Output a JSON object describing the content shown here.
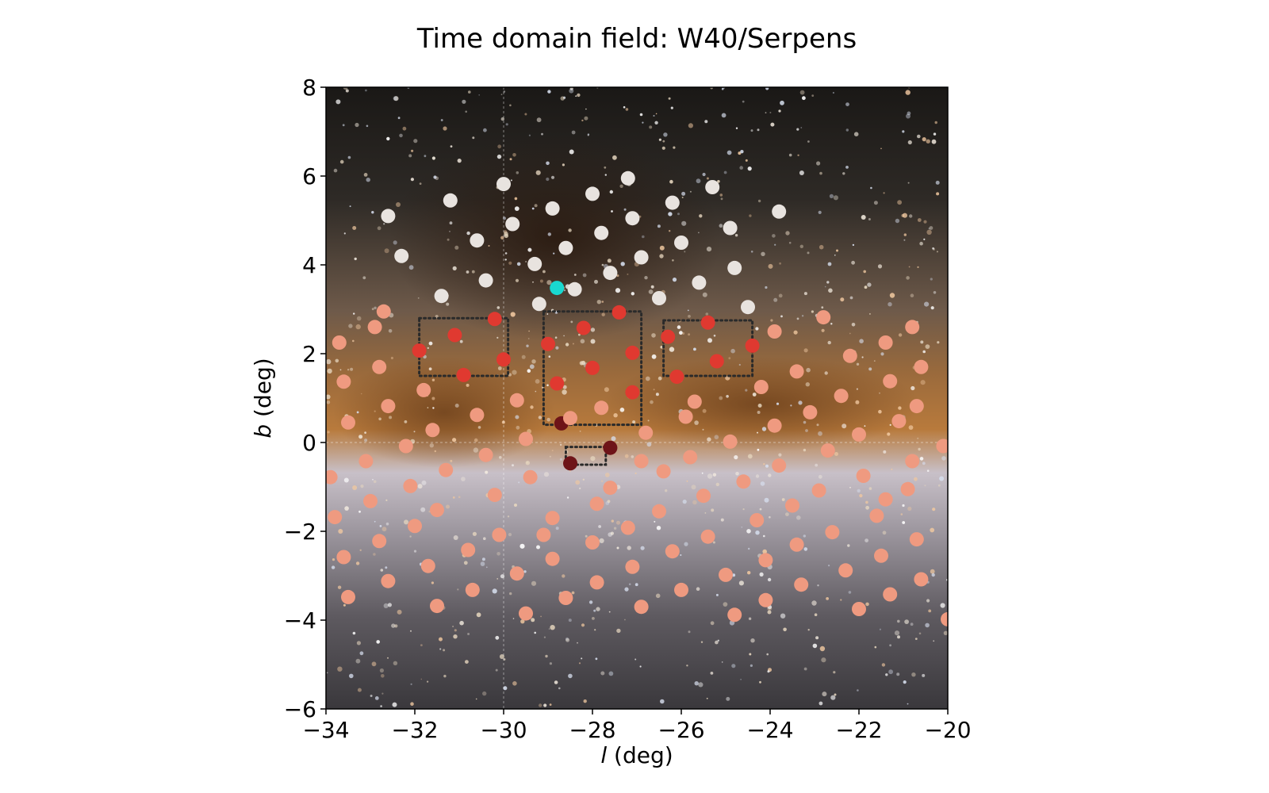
{
  "chart_data": {
    "type": "scatter",
    "title": "Time domain field: W40/Serpens",
    "xlabel_var": "l",
    "xlabel_unit": " (deg)",
    "ylabel_var": "b",
    "ylabel_unit": " (deg)",
    "xlim": [
      -34,
      -20
    ],
    "ylim": [
      -6,
      8
    ],
    "xticks": [
      -34,
      -32,
      -30,
      -28,
      -26,
      -24,
      -22,
      -20
    ],
    "yticks": [
      -6,
      -4,
      -2,
      0,
      2,
      4,
      6,
      8
    ],
    "xtick_labels": [
      "−34",
      "−32",
      "−30",
      "−28",
      "−26",
      "−24",
      "−22",
      "−20"
    ],
    "ytick_labels": [
      "−6",
      "−4",
      "−2",
      "0",
      "2",
      "4",
      "6",
      "8"
    ],
    "grid": false,
    "background": "milky-way-image",
    "reference_lines": {
      "x": -30,
      "y": 0
    },
    "regions": [
      {
        "l": [
          -31.9,
          -29.9
        ],
        "b": [
          1.5,
          2.8
        ]
      },
      {
        "l": [
          -29.1,
          -26.9
        ],
        "b": [
          0.4,
          2.95
        ]
      },
      {
        "l": [
          -26.4,
          -24.4
        ],
        "b": [
          1.5,
          2.75
        ]
      },
      {
        "l": [
          -28.6,
          -27.7
        ],
        "b": [
          -0.5,
          -0.1
        ]
      }
    ],
    "series": [
      {
        "color": "#e8e3df",
        "points": [
          [
            -30,
            5.82
          ],
          [
            -27.2,
            5.95
          ],
          [
            -25.3,
            5.75
          ],
          [
            -31.2,
            5.45
          ],
          [
            -28,
            5.6
          ],
          [
            -26.2,
            5.4
          ],
          [
            -23.8,
            5.2
          ],
          [
            -32.6,
            5.1
          ],
          [
            -28.9,
            5.27
          ],
          [
            -27.1,
            5.05
          ],
          [
            -29.8,
            4.92
          ],
          [
            -24.9,
            4.83
          ],
          [
            -27.8,
            4.72
          ],
          [
            -30.6,
            4.55
          ],
          [
            -26,
            4.5
          ],
          [
            -28.6,
            4.38
          ],
          [
            -32.3,
            4.2
          ],
          [
            -26.9,
            4.17
          ],
          [
            -29.3,
            4.02
          ],
          [
            -24.8,
            3.93
          ],
          [
            -27.6,
            3.82
          ],
          [
            -30.4,
            3.65
          ],
          [
            -25.6,
            3.6
          ],
          [
            -28.4,
            3.45
          ],
          [
            -31.4,
            3.3
          ],
          [
            -26.5,
            3.25
          ],
          [
            -29.2,
            3.12
          ],
          [
            -24.5,
            3.05
          ]
        ]
      },
      {
        "color": "#e03930",
        "points": [
          [
            -30.2,
            2.78
          ],
          [
            -27.4,
            2.93
          ],
          [
            -25.4,
            2.7
          ],
          [
            -28.2,
            2.58
          ],
          [
            -31.1,
            2.42
          ],
          [
            -26.3,
            2.38
          ],
          [
            -29,
            2.22
          ],
          [
            -24.4,
            2.18
          ],
          [
            -31.9,
            2.07
          ],
          [
            -27.1,
            2.02
          ],
          [
            -30,
            1.87
          ],
          [
            -25.2,
            1.83
          ],
          [
            -28,
            1.68
          ],
          [
            -30.9,
            1.52
          ],
          [
            -26.1,
            1.48
          ],
          [
            -28.8,
            1.33
          ],
          [
            -27.1,
            1.13
          ]
        ]
      },
      {
        "color": "#6e1418",
        "points": [
          [
            -28.7,
            0.43
          ],
          [
            -27.6,
            -0.12
          ],
          [
            -28.5,
            -0.47
          ]
        ]
      },
      {
        "color": "#ef9a80",
        "points": [
          [
            -33.7,
            2.25
          ],
          [
            -32.9,
            2.6
          ],
          [
            -32.7,
            2.95
          ],
          [
            -22.8,
            2.82
          ],
          [
            -23.9,
            2.5
          ],
          [
            -22.2,
            1.95
          ],
          [
            -21.4,
            2.25
          ],
          [
            -20.8,
            2.6
          ],
          [
            -20.6,
            1.7
          ],
          [
            -23.4,
            1.6
          ],
          [
            -21.3,
            1.38
          ],
          [
            -32.8,
            1.7
          ],
          [
            -33.6,
            1.37
          ],
          [
            -31.8,
            1.18
          ],
          [
            -29.7,
            0.95
          ],
          [
            -27.8,
            0.78
          ],
          [
            -25.7,
            0.92
          ],
          [
            -24.2,
            1.25
          ],
          [
            -22.4,
            1.05
          ],
          [
            -20.7,
            0.82
          ],
          [
            -32.6,
            0.82
          ],
          [
            -30.6,
            0.62
          ],
          [
            -28.5,
            0.55
          ],
          [
            -26.8,
            0.22
          ],
          [
            -25.9,
            0.58
          ],
          [
            -23.1,
            0.68
          ],
          [
            -21.1,
            0.48
          ],
          [
            -33.5,
            0.45
          ],
          [
            -31.6,
            0.28
          ],
          [
            -29.5,
            0.08
          ],
          [
            -24.9,
            0.02
          ],
          [
            -23.9,
            0.38
          ],
          [
            -22,
            0.18
          ],
          [
            -20.1,
            -0.08
          ],
          [
            -32.2,
            -0.08
          ],
          [
            -30.4,
            -0.28
          ],
          [
            -26.9,
            -0.42
          ],
          [
            -25.8,
            -0.33
          ],
          [
            -22.7,
            -0.18
          ],
          [
            -20.8,
            -0.42
          ],
          [
            -33.1,
            -0.42
          ],
          [
            -31.3,
            -0.62
          ],
          [
            -29.4,
            -0.78
          ],
          [
            -26.4,
            -0.65
          ],
          [
            -24.6,
            -0.88
          ],
          [
            -23.8,
            -0.52
          ],
          [
            -21.9,
            -0.75
          ],
          [
            -33.9,
            -0.78
          ],
          [
            -32.1,
            -0.98
          ],
          [
            -30.2,
            -1.18
          ],
          [
            -27.6,
            -1.02
          ],
          [
            -25.5,
            -1.2
          ],
          [
            -22.9,
            -1.08
          ],
          [
            -20.9,
            -1.05
          ],
          [
            -33.8,
            -1.68
          ],
          [
            -33,
            -1.32
          ],
          [
            -31.5,
            -1.52
          ],
          [
            -28.9,
            -1.7
          ],
          [
            -27.9,
            -1.38
          ],
          [
            -26.5,
            -1.55
          ],
          [
            -24.3,
            -1.75
          ],
          [
            -23.5,
            -1.42
          ],
          [
            -21.6,
            -1.65
          ],
          [
            -21.4,
            -1.28
          ],
          [
            -32,
            -1.88
          ],
          [
            -30.1,
            -2.08
          ],
          [
            -27.2,
            -1.92
          ],
          [
            -25.4,
            -2.12
          ],
          [
            -22.6,
            -2.02
          ],
          [
            -20.7,
            -2.18
          ],
          [
            -32.8,
            -2.22
          ],
          [
            -30.8,
            -2.42
          ],
          [
            -29.1,
            -2.08
          ],
          [
            -28,
            -2.25
          ],
          [
            -26.2,
            -2.45
          ],
          [
            -24.1,
            -2.65
          ],
          [
            -23.4,
            -2.3
          ],
          [
            -21.5,
            -2.55
          ],
          [
            -33.6,
            -2.58
          ],
          [
            -31.7,
            -2.78
          ],
          [
            -28.9,
            -2.62
          ],
          [
            -27.1,
            -2.8
          ],
          [
            -25,
            -2.98
          ],
          [
            -22.3,
            -2.88
          ],
          [
            -20.6,
            -3.08
          ],
          [
            -32.6,
            -3.12
          ],
          [
            -30.7,
            -3.32
          ],
          [
            -29.7,
            -2.95
          ],
          [
            -27.9,
            -3.15
          ],
          [
            -26,
            -3.32
          ],
          [
            -23.3,
            -3.2
          ],
          [
            -21.3,
            -3.42
          ],
          [
            -33.5,
            -3.48
          ],
          [
            -31.5,
            -3.68
          ],
          [
            -29.5,
            -3.85
          ],
          [
            -28.6,
            -3.5
          ],
          [
            -26.9,
            -3.7
          ],
          [
            -24.8,
            -3.88
          ],
          [
            -24.1,
            -3.55
          ],
          [
            -22,
            -3.75
          ],
          [
            -20,
            -3.98
          ]
        ]
      },
      {
        "color": "#19d8d0",
        "points": [
          [
            -28.8,
            3.48
          ]
        ]
      }
    ]
  }
}
